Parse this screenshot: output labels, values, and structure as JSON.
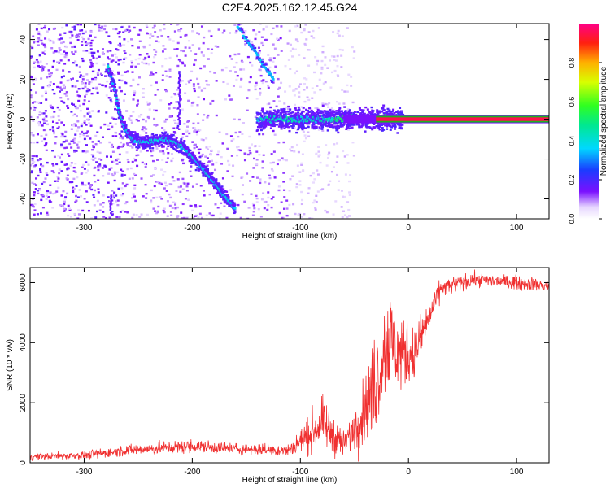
{
  "title": "C2E4.2025.162.12.45.G24",
  "chart_data": [
    {
      "type": "heatmap",
      "xlabel": "Height of straight line (km)",
      "ylabel": "Frequency (Hz)",
      "xlim": [
        -350,
        130
      ],
      "ylim": [
        -50,
        48
      ],
      "x_ticks": [
        -300,
        -200,
        -100,
        0,
        100
      ],
      "y_ticks": [
        -40,
        -20,
        0,
        20,
        40
      ],
      "colorbar": {
        "label": "Normalized spectral amplitude",
        "range": [
          0,
          1
        ],
        "ticks": [
          0.0,
          0.2,
          0.4,
          0.6,
          0.8
        ]
      },
      "scatter_region": {
        "x_from": -350,
        "x_to": -110,
        "f_min": -50,
        "f_max": 48,
        "scale_to_x": -90
      },
      "ridge": {
        "name": "main frequency track",
        "x": [
          -278,
          -272,
          -268,
          -262,
          -255,
          -245,
          -235,
          -225,
          -215,
          -205,
          -195,
          -185,
          -175,
          -168,
          -160
        ],
        "f": [
          26,
          16,
          4,
          -5,
          -10,
          -12,
          -11,
          -10,
          -12,
          -16,
          -22,
          -28,
          -35,
          -40,
          -45
        ]
      },
      "upper_track": {
        "x": [
          -158,
          -150,
          -142,
          -135,
          -125
        ],
        "f": [
          47,
          40,
          34,
          28,
          20
        ]
      },
      "vertical_features": [
        {
          "x": -212,
          "f0": -5,
          "f1": 24
        },
        {
          "x": -275,
          "f0": -48,
          "f1": -38
        }
      ],
      "tone_band": {
        "x_from": -140,
        "x_to": -5,
        "f": 0,
        "spread": 2.5
      },
      "carrier_line": {
        "x_from": -30,
        "x_to": 130,
        "f": 0,
        "amplitude": 1.0
      }
    },
    {
      "type": "line",
      "xlabel": "Height of straight line (km)",
      "ylabel": "SNR (10 * v/v)",
      "xlim": [
        -350,
        130
      ],
      "ylim": [
        0,
        6500
      ],
      "x_ticks": [
        -300,
        -200,
        -100,
        0,
        100
      ],
      "y_ticks": [
        0,
        2000,
        4000,
        6000
      ],
      "series": [
        {
          "color": "#f03030",
          "envelope": [
            {
              "x": -350,
              "mean": 200,
              "noise": 120
            },
            {
              "x": -300,
              "mean": 250,
              "noise": 150
            },
            {
              "x": -260,
              "mean": 420,
              "noise": 200
            },
            {
              "x": -200,
              "mean": 550,
              "noise": 250
            },
            {
              "x": -150,
              "mean": 450,
              "noise": 200
            },
            {
              "x": -110,
              "mean": 420,
              "noise": 250
            },
            {
              "x": -80,
              "mean": 1300,
              "noise": 900
            },
            {
              "x": -60,
              "mean": 600,
              "noise": 500
            },
            {
              "x": -45,
              "mean": 1400,
              "noise": 1000
            },
            {
              "x": -30,
              "mean": 2700,
              "noise": 1800
            },
            {
              "x": -20,
              "mean": 4200,
              "noise": 2000
            },
            {
              "x": -10,
              "mean": 3700,
              "noise": 1500
            },
            {
              "x": 5,
              "mean": 3600,
              "noise": 1000
            },
            {
              "x": 15,
              "mean": 4500,
              "noise": 700
            },
            {
              "x": 30,
              "mean": 5800,
              "noise": 350
            },
            {
              "x": 60,
              "mean": 6100,
              "noise": 250
            },
            {
              "x": 100,
              "mean": 6000,
              "noise": 250
            },
            {
              "x": 130,
              "mean": 5900,
              "noise": 250
            }
          ]
        }
      ]
    }
  ]
}
